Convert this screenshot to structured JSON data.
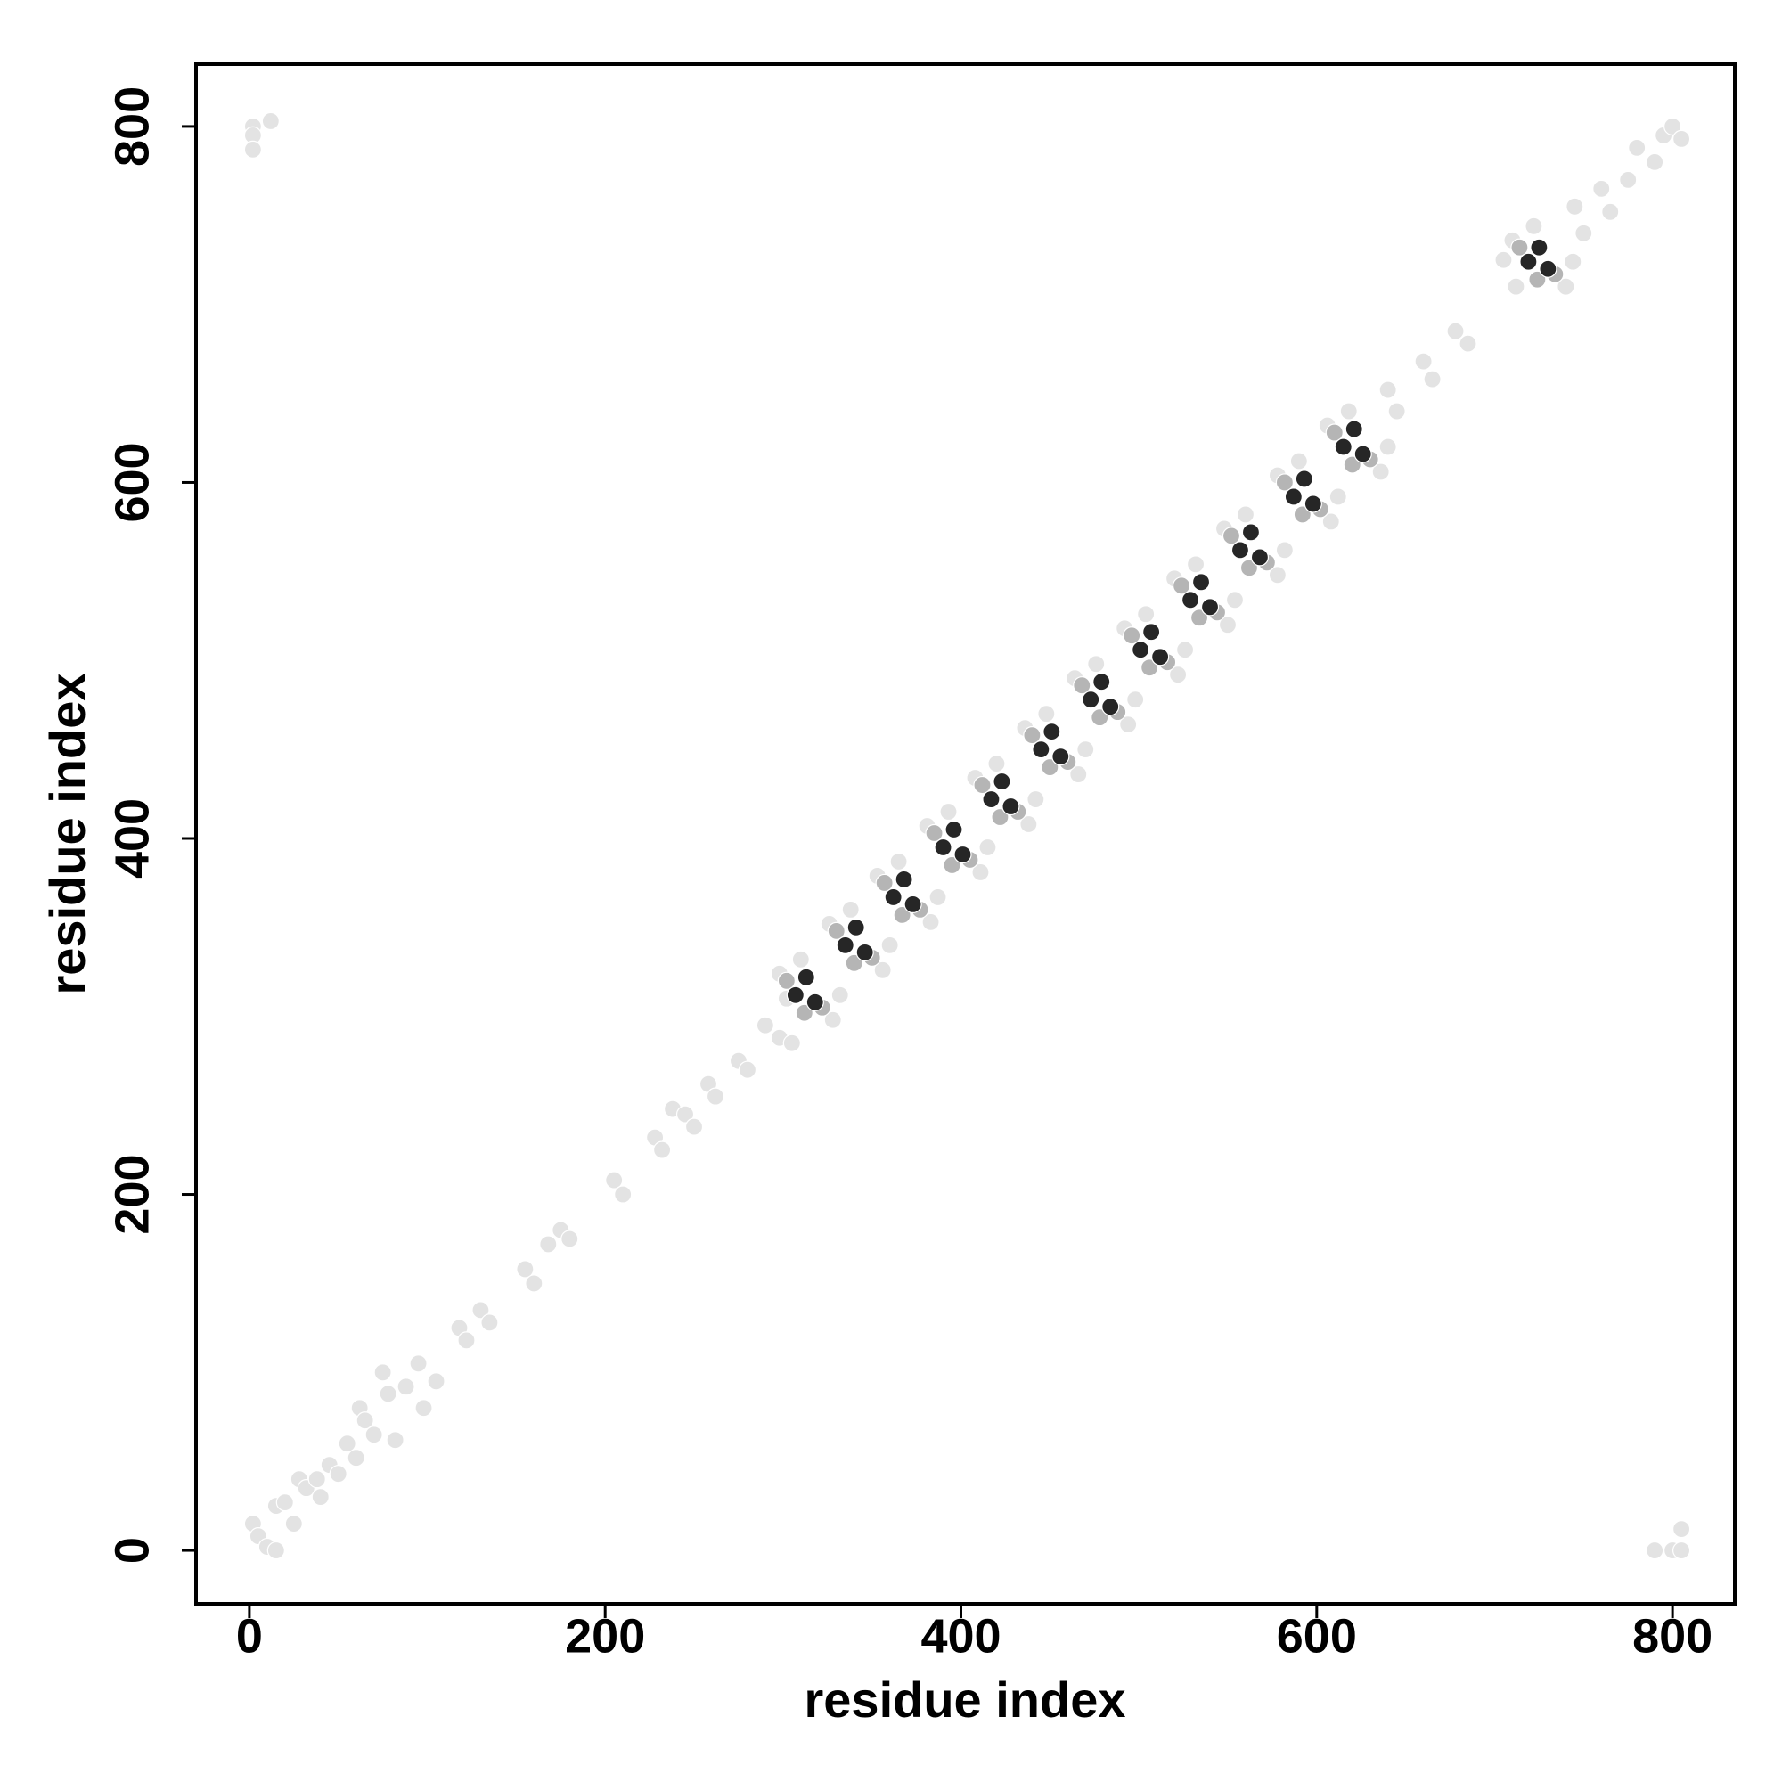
{
  "chart_data": {
    "type": "scatter",
    "xlabel": "residue index",
    "ylabel": "residue index",
    "xlim": [
      -30,
      835
    ],
    "ylim": [
      -30,
      835
    ],
    "xticks": [
      0,
      200,
      400,
      600,
      800
    ],
    "yticks": [
      0,
      200,
      400,
      600,
      800
    ],
    "grid": false,
    "series": [
      {
        "color": "#e3e3e3",
        "x": [
          2,
          2,
          2,
          12,
          790,
          800,
          805,
          805,
          2,
          5,
          10,
          15,
          15,
          20,
          25,
          28,
          32,
          38,
          40,
          45,
          50,
          55,
          60,
          62,
          65,
          70,
          75,
          78,
          82,
          88,
          95,
          98,
          105,
          118,
          122,
          130,
          135,
          155,
          160,
          168,
          175,
          180,
          205,
          210,
          228,
          232,
          238,
          245,
          250,
          258,
          262,
          275,
          280,
          290,
          298,
          302,
          305,
          298,
          328,
          310,
          332,
          326,
          356,
          338,
          360,
          353,
          383,
          365,
          387,
          381,
          411,
          393,
          415,
          408,
          438,
          420,
          442,
          436,
          466,
          448,
          470,
          464,
          494,
          476,
          498,
          492,
          522,
          504,
          526,
          520,
          550,
          532,
          554,
          548,
          578,
          560,
          582,
          578,
          608,
          590,
          612,
          606,
          636,
          618,
          640,
          710,
          740,
          722,
          744,
          640,
          645,
          660,
          665,
          678,
          685,
          705,
          712,
          745,
          750,
          760,
          765,
          775,
          780,
          790,
          795,
          800,
          805
        ],
        "values": [
          800,
          795,
          787,
          803,
          0,
          0,
          0,
          12,
          15,
          8,
          2,
          0,
          25,
          27,
          15,
          40,
          35,
          40,
          30,
          48,
          43,
          60,
          52,
          80,
          73,
          65,
          100,
          88,
          62,
          92,
          105,
          80,
          95,
          125,
          118,
          135,
          128,
          158,
          150,
          172,
          180,
          175,
          208,
          200,
          232,
          225,
          248,
          245,
          238,
          262,
          255,
          275,
          270,
          295,
          288,
          310,
          285,
          324,
          298,
          332,
          312,
          352,
          326,
          360,
          340,
          379,
          353,
          387,
          367,
          407,
          381,
          415,
          395,
          434,
          408,
          442,
          422,
          462,
          436,
          470,
          450,
          490,
          464,
          498,
          478,
          518,
          492,
          526,
          506,
          546,
          520,
          554,
          534,
          574,
          548,
          582,
          562,
          604,
          578,
          612,
          592,
          632,
          606,
          640,
          620,
          736,
          710,
          744,
          724,
          652,
          640,
          668,
          658,
          685,
          678,
          725,
          710,
          755,
          740,
          765,
          752,
          770,
          788,
          780,
          795,
          800,
          793
        ]
      },
      {
        "color": "#b5b5b5",
        "x": [
          302,
          322,
          312,
          330,
          350,
          340,
          357,
          377,
          367,
          385,
          405,
          395,
          412,
          432,
          422,
          440,
          460,
          450,
          468,
          488,
          478,
          496,
          516,
          506,
          524,
          544,
          534,
          552,
          572,
          562,
          582,
          602,
          592,
          610,
          630,
          620,
          714,
          734,
          724
        ],
        "values": [
          320,
          305,
          302,
          348,
          333,
          330,
          375,
          360,
          357,
          403,
          388,
          385,
          430,
          415,
          412,
          458,
          443,
          440,
          486,
          471,
          468,
          514,
          499,
          496,
          542,
          527,
          524,
          570,
          555,
          552,
          600,
          585,
          582,
          628,
          613,
          610,
          732,
          717,
          714
        ]
      },
      {
        "color": "#262626",
        "x": [
          313,
          307,
          318,
          341,
          335,
          346,
          368,
          362,
          373,
          396,
          390,
          401,
          423,
          417,
          428,
          451,
          445,
          456,
          479,
          473,
          484,
          507,
          501,
          512,
          535,
          529,
          540,
          563,
          557,
          568,
          593,
          587,
          598,
          621,
          615,
          626,
          725,
          719,
          730
        ],
        "values": [
          322,
          312,
          308,
          350,
          340,
          336,
          377,
          367,
          363,
          405,
          395,
          391,
          432,
          422,
          418,
          460,
          450,
          446,
          488,
          478,
          474,
          516,
          506,
          502,
          544,
          534,
          530,
          572,
          562,
          558,
          602,
          592,
          588,
          630,
          620,
          616,
          732,
          724,
          720
        ]
      }
    ]
  }
}
